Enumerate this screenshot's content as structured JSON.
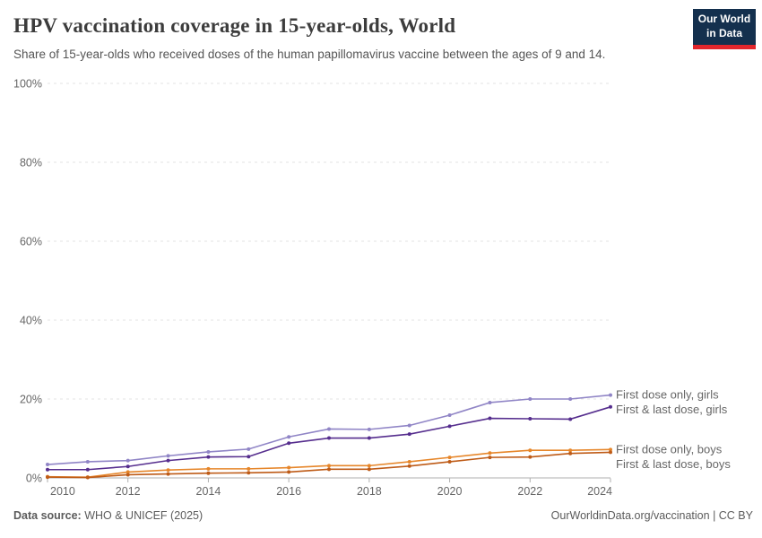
{
  "header": {
    "title": "HPV vaccination coverage in 15-year-olds, World",
    "subtitle": "Share of 15-year-olds who received doses of the human papillomavirus vaccine between the ages of 9 and 14.",
    "logo": {
      "line1": "Our World",
      "line2": "in Data",
      "navy": "#14304e",
      "red": "#e2262c"
    }
  },
  "chart_data": {
    "type": "line",
    "title": "HPV vaccination coverage in 15-year-olds, World",
    "xlabel": "",
    "ylabel": "",
    "x": [
      2010,
      2011,
      2012,
      2013,
      2014,
      2015,
      2016,
      2017,
      2018,
      2019,
      2020,
      2021,
      2022,
      2023,
      2024
    ],
    "series": [
      {
        "name": "First dose only, girls",
        "color": "#9085C6",
        "values": [
          3.4,
          4.1,
          4.4,
          5.6,
          6.6,
          7.3,
          10.4,
          12.4,
          12.3,
          13.3,
          15.9,
          19.1,
          20,
          20,
          21
        ]
      },
      {
        "name": "First & last dose, girls",
        "color": "#562E8E",
        "values": [
          2.1,
          2.1,
          2.9,
          4.4,
          5.3,
          5.4,
          8.8,
          10.1,
          10.1,
          11.1,
          13.1,
          15.1,
          15,
          14.9,
          18
        ]
      },
      {
        "name": "First dose only, boys",
        "color": "#E6862A",
        "values": [
          0.3,
          0.2,
          1.5,
          2,
          2.3,
          2.3,
          2.6,
          3.1,
          3.1,
          4.1,
          5.2,
          6.3,
          7,
          7,
          7.2
        ]
      },
      {
        "name": "First & last dose, boys",
        "color": "#BE5B17",
        "values": [
          0.2,
          0.1,
          0.8,
          1,
          1.2,
          1.3,
          1.5,
          2.2,
          2.2,
          3,
          4.1,
          5.2,
          5.3,
          6.2,
          6.5
        ]
      }
    ],
    "ylim": [
      0,
      100
    ],
    "y_ticks": [
      0,
      20,
      40,
      60,
      80,
      100
    ],
    "y_tick_suffix": "%",
    "x_ticks": [
      2010,
      2012,
      2014,
      2016,
      2018,
      2020,
      2022,
      2024
    ],
    "grid": "horizontal-dashed",
    "legend_position": "right-end-labels",
    "grid_color": "#e3e3e3",
    "axis_color": "#afafaf"
  },
  "footer": {
    "source_label": "Data source:",
    "source_value": " WHO & UNICEF (2025)",
    "link": "OurWorldinData.org/vaccination | CC BY"
  }
}
